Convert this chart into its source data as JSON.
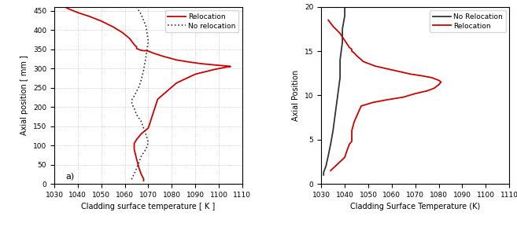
{
  "left": {
    "xlabel": "Cladding surface temperature [ K ]",
    "ylabel": "Axial position [ mm ]",
    "xlim": [
      1030,
      1110
    ],
    "ylim": [
      0,
      460
    ],
    "xticks": [
      1030,
      1040,
      1050,
      1060,
      1070,
      1080,
      1090,
      1100,
      1110
    ],
    "yticks": [
      0,
      50,
      100,
      150,
      200,
      250,
      300,
      350,
      400,
      450
    ],
    "annotation": "a)",
    "reloc_x": [
      1033,
      1036,
      1040,
      1045,
      1050,
      1055,
      1059,
      1062,
      1063,
      1064,
      1065,
      1065,
      1066,
      1067,
      1068,
      1069,
      1070,
      1072,
      1076,
      1082,
      1088,
      1093,
      1098,
      1102,
      1104,
      1105,
      1104,
      1102,
      1098,
      1090,
      1082,
      1074,
      1070,
      1067,
      1065,
      1064,
      1064,
      1064,
      1065,
      1066,
      1067,
      1068,
      1068
    ],
    "reloc_y": [
      465,
      455,
      445,
      435,
      423,
      408,
      393,
      378,
      370,
      362,
      356,
      352,
      349,
      347,
      346,
      346,
      345,
      340,
      332,
      322,
      316,
      312,
      309,
      307,
      306,
      305,
      304,
      302,
      297,
      285,
      262,
      220,
      145,
      130,
      115,
      105,
      100,
      90,
      65,
      42,
      25,
      13,
      8
    ],
    "no_reloc_x": [
      1065,
      1067,
      1069,
      1070,
      1069,
      1068,
      1067,
      1066,
      1065,
      1064,
      1063,
      1063,
      1064,
      1065,
      1067,
      1068,
      1069,
      1070,
      1069,
      1067,
      1066,
      1065,
      1064,
      1063,
      1063
    ],
    "no_reloc_y": [
      460,
      440,
      410,
      370,
      330,
      295,
      270,
      252,
      240,
      228,
      218,
      208,
      196,
      180,
      162,
      145,
      128,
      108,
      90,
      72,
      55,
      40,
      26,
      14,
      8
    ]
  },
  "right": {
    "xlabel": "Cladding Surface Temperature (K)",
    "ylabel": "Axial Position",
    "xlim": [
      1030,
      1110
    ],
    "ylim": [
      0,
      20
    ],
    "xticks": [
      1030,
      1040,
      1050,
      1060,
      1070,
      1080,
      1090,
      1100,
      1110
    ],
    "yticks": [
      0,
      5,
      10,
      15,
      20
    ],
    "no_reloc_x": [
      1040,
      1040,
      1039,
      1039,
      1038,
      1038,
      1037,
      1036,
      1035,
      1034,
      1033,
      1032,
      1031,
      1031
    ],
    "no_reloc_y": [
      20.0,
      19.0,
      17.5,
      16.0,
      14.0,
      12.0,
      10.0,
      8.0,
      6.0,
      4.5,
      3.2,
      2.0,
      1.3,
      1.0
    ],
    "reloc_x": [
      1033,
      1035,
      1038,
      1040,
      1041,
      1042,
      1043,
      1043,
      1044,
      1045,
      1048,
      1053,
      1058,
      1063,
      1068,
      1073,
      1077,
      1080,
      1081,
      1080,
      1078,
      1075,
      1070,
      1065,
      1058,
      1052,
      1047,
      1044,
      1043,
      1043,
      1043,
      1043,
      1042,
      1041,
      1040,
      1038,
      1036,
      1034
    ],
    "reloc_y": [
      18.5,
      17.8,
      17.0,
      16.2,
      15.8,
      15.4,
      15.2,
      15.0,
      14.8,
      14.5,
      13.8,
      13.3,
      13.0,
      12.7,
      12.4,
      12.2,
      12.0,
      11.7,
      11.5,
      11.2,
      10.8,
      10.5,
      10.2,
      9.8,
      9.5,
      9.2,
      8.8,
      7.0,
      6.0,
      5.5,
      5.2,
      4.8,
      4.5,
      3.8,
      3.0,
      2.5,
      2.0,
      1.5
    ]
  },
  "colors": {
    "red": "#cc0000",
    "black": "#333333",
    "grid": "#b0b0b0"
  }
}
